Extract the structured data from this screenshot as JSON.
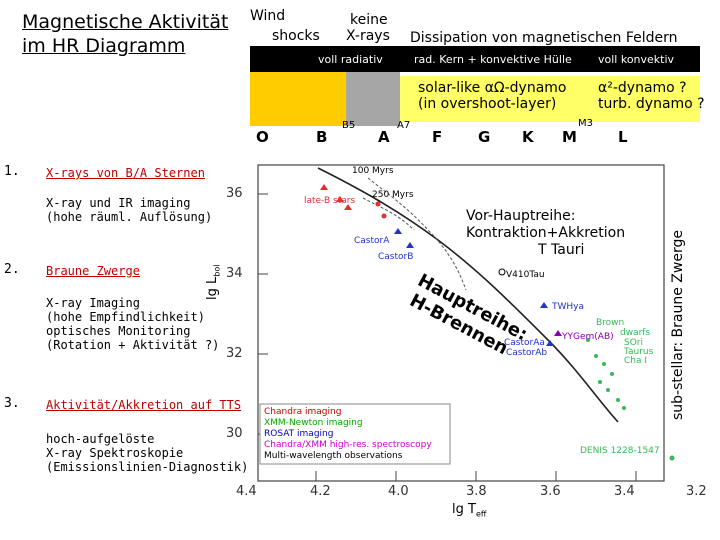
{
  "title": {
    "line1": "Magnetische Aktivität",
    "line2": "im HR Diagramm"
  },
  "header": {
    "wind": "Wind",
    "shocks": "shocks",
    "keine": "keine",
    "xrays": "X-rays",
    "dissipation": "Dissipation von magnetischen Feldern"
  },
  "band": {
    "voll_radiativ": "voll radiativ",
    "rad_kern": "rad. Kern + konvektive Hülle",
    "voll_konvektiv": "voll konvektiv"
  },
  "dynamo": {
    "left1": "solar-like αΩ-dynamo",
    "left2": "(in overshoot-layer)",
    "right1": "α²-dynamo ?",
    "right2": "turb. dynamo ?"
  },
  "spectral": {
    "O": "O",
    "B": "B",
    "B5": "B5",
    "A": "A",
    "A7": "A7",
    "F": "F",
    "G": "G",
    "K": "K",
    "M": "M",
    "M3": "M3",
    "L": "L"
  },
  "items": [
    {
      "num": "1.",
      "label": "X-rays von B/A Sternen",
      "sub": "X-ray und IR imaging\n(hohe räuml. Auflösung)"
    },
    {
      "num": "2.",
      "label": "Braune Zwerge",
      "sub": "X-ray Imaging\n(hohe Empfindlichkeit)\noptisches Monitoring\n(Rotation + Aktivität ?)"
    },
    {
      "num": "3.",
      "label": "Aktivität/Akkretion auf TTS",
      "sub": "hoch-aufgelöste\nX-ray Spektroskopie\n(Emissionslinien-Diagnostik)"
    }
  ],
  "plot": {
    "y_label": "lg L",
    "y_sub": "bol",
    "x_label": "lg T",
    "x_sub": "eff",
    "y_ticks": [
      "36",
      "34",
      "32",
      "30"
    ],
    "x_ticks": [
      "4.4",
      "4.2",
      "4.0",
      "3.8",
      "3.6",
      "3.4",
      "3.2"
    ],
    "pre_ms1": "Vor-Hauptreihe:",
    "pre_ms2": "Kontraktion+Akkretion",
    "tauri": "T Tauri",
    "hauptreihe": "Hauptreihe:",
    "hbrennen": "H-Brennen",
    "side": "sub-stellar: Braune Zwerge",
    "iso_100": "100 Myrs",
    "iso_250": "250 Myrs",
    "late_b": "late-B stars",
    "castorA": "CastorA",
    "castorB": "CastorB",
    "v410": "V410Tau",
    "twhya": "TWHya",
    "yycem": "YYGem(AB)",
    "castorAa": "CastorAa",
    "castorAb": "CastorAb",
    "brown": "Brown",
    "dwarfs": "dwarfs",
    "sori": "SOri",
    "taurus": "Taurus",
    "cha": "Cha I",
    "denis": "DENIS 1228-1547",
    "legend": [
      {
        "text": "Chandra imaging",
        "color": "#cc0000"
      },
      {
        "text": "XMM-Newton imaging",
        "color": "#00aa00"
      },
      {
        "text": "ROSAT imaging",
        "color": "#0000cc"
      },
      {
        "text": "Chandra/XMM high-res. spectroscopy",
        "color": "#cc00cc"
      },
      {
        "text": "Multi-wavelength observations",
        "color": "#000000"
      }
    ]
  }
}
